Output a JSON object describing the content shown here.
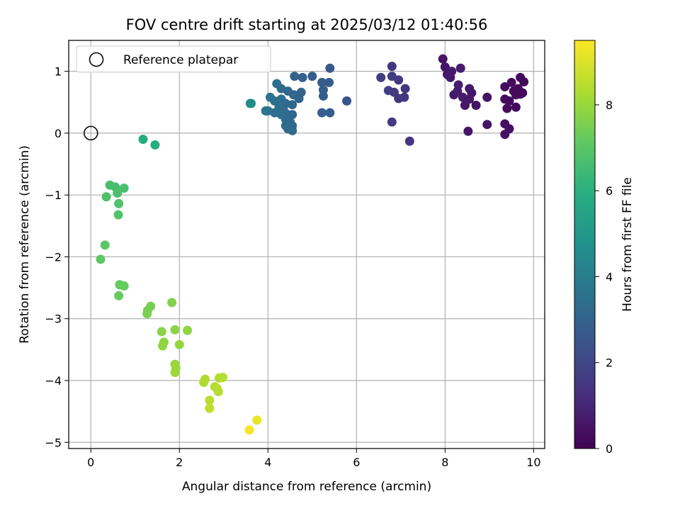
{
  "chart_data": {
    "type": "scatter",
    "title": "FOV centre drift starting at 2025/03/12 01:40:56",
    "xlabel": "Angular distance from reference (arcmin)",
    "ylabel": "Rotation from reference (arcmin)",
    "xlim": [
      -0.5,
      10.25
    ],
    "ylim": [
      -5.1,
      1.5
    ],
    "xticks": [
      0,
      2,
      4,
      6,
      8,
      10
    ],
    "yticks": [
      1,
      0,
      -1,
      -2,
      -3,
      -4,
      -5
    ],
    "grid": true,
    "legend": {
      "position": "top-left",
      "entries": [
        "Reference platepar"
      ]
    },
    "reference_point": {
      "x": 0,
      "y": 0
    },
    "colorbar": {
      "label": "Hours from first FF file",
      "range": [
        0,
        9.5
      ],
      "ticks": [
        0,
        2,
        4,
        6,
        8
      ],
      "colormap": "viridis"
    },
    "points": [
      {
        "x": 7.95,
        "y": 1.2,
        "h": 0.55
      },
      {
        "x": 8.0,
        "y": 1.07,
        "h": 0.6
      },
      {
        "x": 8.05,
        "y": 0.95,
        "h": 0.62
      },
      {
        "x": 8.15,
        "y": 1.0,
        "h": 0.7
      },
      {
        "x": 8.35,
        "y": 1.05,
        "h": 0.75
      },
      {
        "x": 8.12,
        "y": 0.9,
        "h": 0.65
      },
      {
        "x": 8.3,
        "y": 0.78,
        "h": 0.8
      },
      {
        "x": 8.2,
        "y": 0.62,
        "h": 0.7
      },
      {
        "x": 8.28,
        "y": 0.68,
        "h": 0.75
      },
      {
        "x": 8.4,
        "y": 0.58,
        "h": 0.7
      },
      {
        "x": 8.55,
        "y": 0.72,
        "h": 0.65
      },
      {
        "x": 8.6,
        "y": 0.65,
        "h": 0.6
      },
      {
        "x": 8.45,
        "y": 0.45,
        "h": 0.6
      },
      {
        "x": 8.55,
        "y": 0.55,
        "h": 0.65
      },
      {
        "x": 8.7,
        "y": 0.45,
        "h": 0.55
      },
      {
        "x": 8.95,
        "y": 0.58,
        "h": 0.5
      },
      {
        "x": 8.95,
        "y": 0.14,
        "h": 0.55
      },
      {
        "x": 8.52,
        "y": 0.03,
        "h": 0.6
      },
      {
        "x": 9.35,
        "y": 0.75,
        "h": 0.3
      },
      {
        "x": 9.5,
        "y": 0.82,
        "h": 0.3
      },
      {
        "x": 9.7,
        "y": 0.9,
        "h": 0.2
      },
      {
        "x": 9.78,
        "y": 0.83,
        "h": 0.15
      },
      {
        "x": 9.55,
        "y": 0.68,
        "h": 0.25
      },
      {
        "x": 9.65,
        "y": 0.72,
        "h": 0.2
      },
      {
        "x": 9.75,
        "y": 0.65,
        "h": 0.15
      },
      {
        "x": 9.6,
        "y": 0.62,
        "h": 0.25
      },
      {
        "x": 9.7,
        "y": 0.63,
        "h": 0.2
      },
      {
        "x": 9.35,
        "y": 0.55,
        "h": 0.35
      },
      {
        "x": 9.45,
        "y": 0.52,
        "h": 0.3
      },
      {
        "x": 9.4,
        "y": 0.4,
        "h": 0.3
      },
      {
        "x": 9.6,
        "y": 0.42,
        "h": 0.25
      },
      {
        "x": 9.35,
        "y": 0.15,
        "h": 0.4
      },
      {
        "x": 9.45,
        "y": 0.07,
        "h": 0.4
      },
      {
        "x": 9.35,
        "y": -0.02,
        "h": 0.45
      },
      {
        "x": 6.55,
        "y": 0.9,
        "h": 1.8
      },
      {
        "x": 6.8,
        "y": 1.08,
        "h": 1.5
      },
      {
        "x": 6.8,
        "y": 0.92,
        "h": 1.7
      },
      {
        "x": 6.95,
        "y": 0.86,
        "h": 1.6
      },
      {
        "x": 7.1,
        "y": 0.72,
        "h": 1.5
      },
      {
        "x": 6.72,
        "y": 0.69,
        "h": 1.7
      },
      {
        "x": 6.85,
        "y": 0.66,
        "h": 1.6
      },
      {
        "x": 6.95,
        "y": 0.56,
        "h": 1.55
      },
      {
        "x": 7.08,
        "y": 0.58,
        "h": 1.5
      },
      {
        "x": 6.8,
        "y": 0.18,
        "h": 1.6
      },
      {
        "x": 7.2,
        "y": -0.13,
        "h": 1.45
      },
      {
        "x": 4.6,
        "y": 0.92,
        "h": 3.0
      },
      {
        "x": 4.78,
        "y": 0.9,
        "h": 2.9
      },
      {
        "x": 5.0,
        "y": 0.92,
        "h": 2.8
      },
      {
        "x": 5.4,
        "y": 1.05,
        "h": 2.6
      },
      {
        "x": 5.22,
        "y": 0.82,
        "h": 2.7
      },
      {
        "x": 5.38,
        "y": 0.82,
        "h": 2.7
      },
      {
        "x": 5.25,
        "y": 0.7,
        "h": 2.8
      },
      {
        "x": 5.25,
        "y": 0.6,
        "h": 2.8
      },
      {
        "x": 5.22,
        "y": 0.33,
        "h": 2.85
      },
      {
        "x": 5.4,
        "y": 0.33,
        "h": 2.8
      },
      {
        "x": 5.78,
        "y": 0.52,
        "h": 2.5
      },
      {
        "x": 4.2,
        "y": 0.8,
        "h": 3.4
      },
      {
        "x": 4.3,
        "y": 0.72,
        "h": 3.3
      },
      {
        "x": 4.45,
        "y": 0.68,
        "h": 3.2
      },
      {
        "x": 4.58,
        "y": 0.62,
        "h": 3.1
      },
      {
        "x": 4.75,
        "y": 0.66,
        "h": 3.0
      },
      {
        "x": 4.7,
        "y": 0.56,
        "h": 3.0
      },
      {
        "x": 4.05,
        "y": 0.58,
        "h": 3.6
      },
      {
        "x": 4.15,
        "y": 0.52,
        "h": 3.5
      },
      {
        "x": 4.3,
        "y": 0.55,
        "h": 3.4
      },
      {
        "x": 4.4,
        "y": 0.48,
        "h": 3.3
      },
      {
        "x": 4.55,
        "y": 0.46,
        "h": 3.2
      },
      {
        "x": 4.25,
        "y": 0.42,
        "h": 3.4
      },
      {
        "x": 4.35,
        "y": 0.38,
        "h": 3.35
      },
      {
        "x": 4.0,
        "y": 0.36,
        "h": 3.6
      },
      {
        "x": 4.15,
        "y": 0.33,
        "h": 3.5
      },
      {
        "x": 4.3,
        "y": 0.3,
        "h": 3.4
      },
      {
        "x": 4.45,
        "y": 0.3,
        "h": 3.3
      },
      {
        "x": 4.55,
        "y": 0.3,
        "h": 3.2
      },
      {
        "x": 4.4,
        "y": 0.22,
        "h": 3.3
      },
      {
        "x": 4.5,
        "y": 0.18,
        "h": 3.2
      },
      {
        "x": 4.4,
        "y": 0.12,
        "h": 3.3
      },
      {
        "x": 4.55,
        "y": 0.12,
        "h": 3.2
      },
      {
        "x": 4.45,
        "y": 0.07,
        "h": 3.3
      },
      {
        "x": 4.55,
        "y": 0.04,
        "h": 3.2
      },
      {
        "x": 3.95,
        "y": 0.36,
        "h": 3.7
      },
      {
        "x": 3.6,
        "y": 0.48,
        "h": 4.6
      },
      {
        "x": 3.62,
        "y": 0.48,
        "h": 4.65
      },
      {
        "x": 1.18,
        "y": -0.1,
        "h": 5.8
      },
      {
        "x": 1.45,
        "y": -0.19,
        "h": 5.9
      },
      {
        "x": 0.43,
        "y": -0.84,
        "h": 6.6
      },
      {
        "x": 0.55,
        "y": -0.87,
        "h": 6.65
      },
      {
        "x": 0.75,
        "y": -0.89,
        "h": 6.7
      },
      {
        "x": 0.35,
        "y": -1.03,
        "h": 6.75
      },
      {
        "x": 0.6,
        "y": -0.97,
        "h": 6.7
      },
      {
        "x": 0.63,
        "y": -1.14,
        "h": 6.8
      },
      {
        "x": 0.62,
        "y": -1.32,
        "h": 6.85
      },
      {
        "x": 0.32,
        "y": -1.81,
        "h": 7.0
      },
      {
        "x": 0.22,
        "y": -2.04,
        "h": 7.05
      },
      {
        "x": 0.65,
        "y": -2.45,
        "h": 7.2
      },
      {
        "x": 0.75,
        "y": -2.47,
        "h": 7.25
      },
      {
        "x": 0.63,
        "y": -2.63,
        "h": 7.25
      },
      {
        "x": 1.35,
        "y": -2.8,
        "h": 7.5
      },
      {
        "x": 1.28,
        "y": -2.87,
        "h": 7.5
      },
      {
        "x": 1.27,
        "y": -2.92,
        "h": 7.55
      },
      {
        "x": 1.83,
        "y": -2.74,
        "h": 7.7
      },
      {
        "x": 1.6,
        "y": -3.21,
        "h": 7.75
      },
      {
        "x": 1.9,
        "y": -3.18,
        "h": 7.8
      },
      {
        "x": 2.18,
        "y": -3.19,
        "h": 7.85
      },
      {
        "x": 1.65,
        "y": -3.38,
        "h": 7.85
      },
      {
        "x": 1.62,
        "y": -3.44,
        "h": 7.9
      },
      {
        "x": 2.0,
        "y": -3.42,
        "h": 7.95
      },
      {
        "x": 1.9,
        "y": -3.74,
        "h": 8.0
      },
      {
        "x": 1.92,
        "y": -3.8,
        "h": 8.05
      },
      {
        "x": 1.9,
        "y": -3.87,
        "h": 8.05
      },
      {
        "x": 2.58,
        "y": -3.98,
        "h": 8.3
      },
      {
        "x": 2.55,
        "y": -4.03,
        "h": 8.35
      },
      {
        "x": 2.9,
        "y": -3.96,
        "h": 8.35
      },
      {
        "x": 2.98,
        "y": -3.95,
        "h": 8.4
      },
      {
        "x": 2.8,
        "y": -4.1,
        "h": 8.4
      },
      {
        "x": 2.85,
        "y": -4.13,
        "h": 8.45
      },
      {
        "x": 2.88,
        "y": -4.18,
        "h": 8.45
      },
      {
        "x": 2.68,
        "y": -4.32,
        "h": 8.5
      },
      {
        "x": 2.68,
        "y": -4.45,
        "h": 8.55
      },
      {
        "x": 3.75,
        "y": -4.64,
        "h": 9.2
      },
      {
        "x": 3.58,
        "y": -4.8,
        "h": 9.4
      }
    ]
  }
}
